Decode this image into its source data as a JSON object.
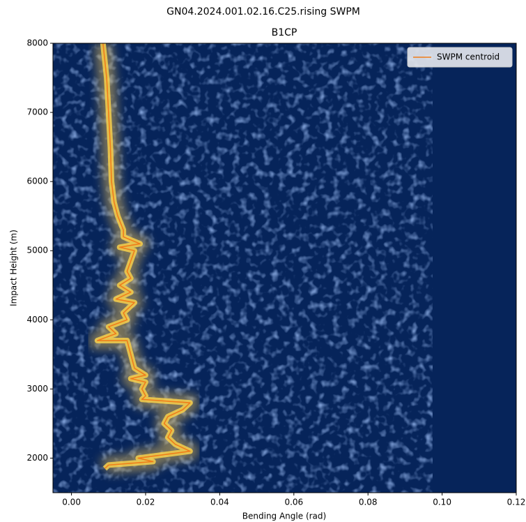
{
  "chart_data": {
    "type": "line",
    "title": "GN04.2024.001.02.16.C25.rising SWPM",
    "subtitle": "B1CP",
    "x_label": "Bending Angle (rad)",
    "y_label": "Impact Height (m)",
    "xlim": [
      -0.005,
      0.12
    ],
    "ylim": [
      1500,
      8000
    ],
    "xticks": [
      {
        "value": 0,
        "label": "0.00"
      },
      {
        "value": 0.02,
        "label": "0.02"
      },
      {
        "value": 0.04,
        "label": "0.04"
      },
      {
        "value": 0.06,
        "label": "0.06"
      },
      {
        "value": 0.08,
        "label": "0.08"
      },
      {
        "value": 0.1,
        "label": "0.10"
      },
      {
        "value": 0.12,
        "label": "0.12"
      }
    ],
    "yticks": [
      2000,
      3000,
      4000,
      5000,
      6000,
      7000,
      8000
    ],
    "legend_position": "upper right",
    "series": [
      {
        "name": "SWPM centroid",
        "color": "#f07d1a",
        "x": [
          0.0085,
          0.0095,
          0.01,
          0.0105,
          0.0108,
          0.0115,
          0.0125,
          0.014,
          0.014,
          0.0185,
          0.013,
          0.017,
          0.015,
          0.016,
          0.013,
          0.016,
          0.012,
          0.017,
          0.014,
          0.015,
          0.01,
          0.012,
          0.007,
          0.015,
          0.016,
          0.017,
          0.02,
          0.016,
          0.02,
          0.019,
          0.02,
          0.019,
          0.032,
          0.03,
          0.026,
          0.025,
          0.027,
          0.026,
          0.028,
          0.032,
          0.018,
          0.022,
          0.01,
          0.009
        ],
        "values": [
          8000,
          7500,
          7000,
          6500,
          6000,
          5700,
          5500,
          5300,
          5200,
          5100,
          5050,
          5000,
          4700,
          4600,
          4500,
          4400,
          4300,
          4250,
          4100,
          4000,
          3900,
          3800,
          3700,
          3700,
          3500,
          3300,
          3200,
          3150,
          3100,
          3000,
          2900,
          2850,
          2800,
          2700,
          2600,
          2500,
          2400,
          2300,
          2200,
          2100,
          2000,
          1950,
          1900,
          1850
        ]
      }
    ]
  }
}
